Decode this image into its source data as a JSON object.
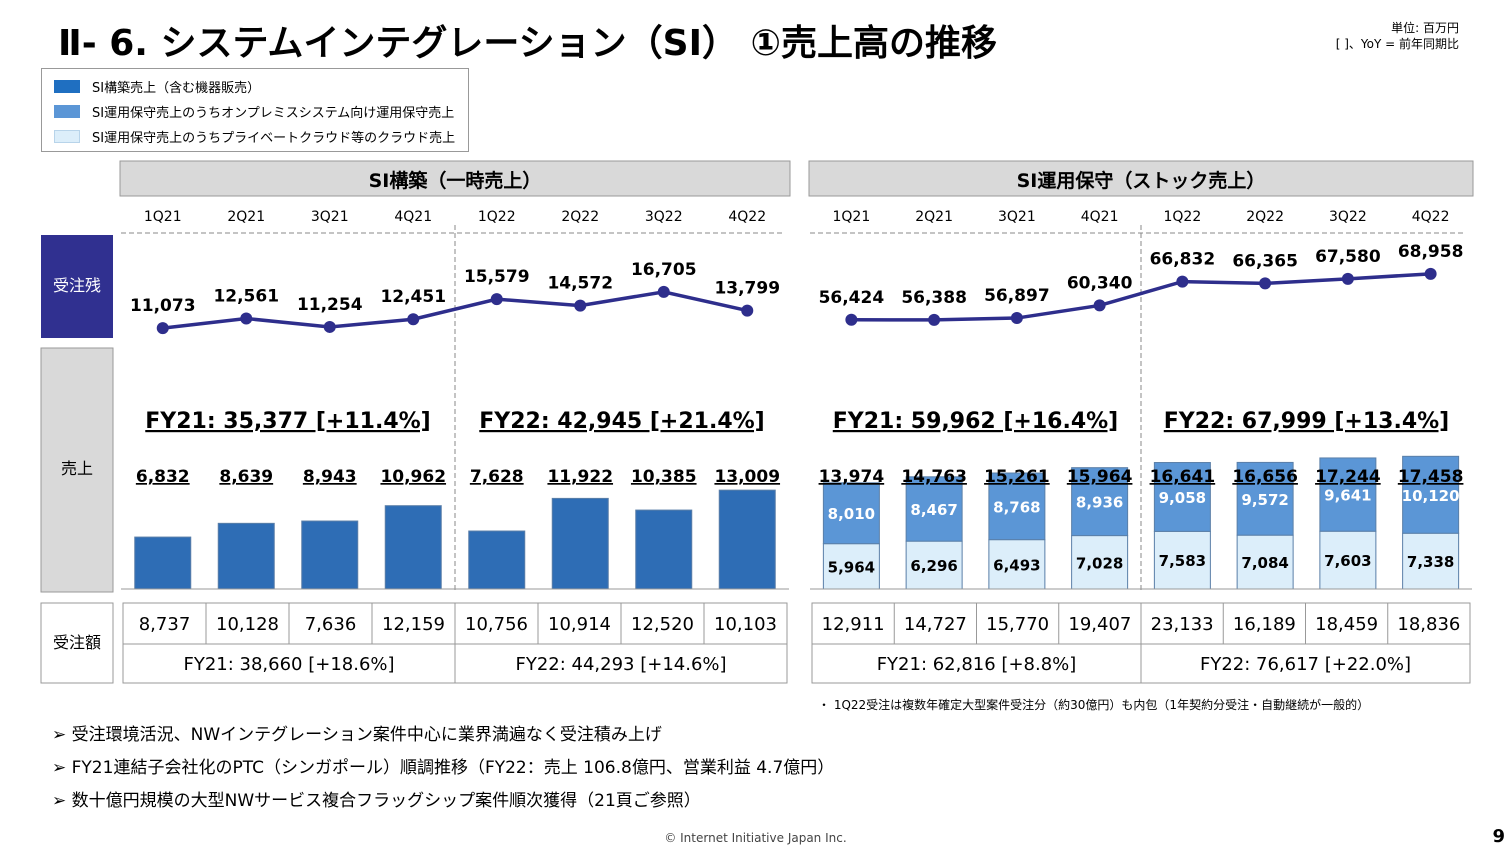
{
  "page": {
    "title": "Ⅱ- 6.  システムインテグレーション（SI）  ①売上高の推移",
    "unit_line1": "単位: 百万円",
    "unit_line2": "[   ]、YoY = 前年同期比",
    "page_number": "9",
    "copyright": "© Internet Initiative Japan Inc."
  },
  "legend": [
    {
      "label": "SI構築売上（含む機器販売）",
      "color": "#1f6fc1"
    },
    {
      "label": "SI運用保守売上のうちオンプレミスシステム向け運用保守売上",
      "color": "#5b96d6"
    },
    {
      "label": "SI運用保守売上のうちプライベートクラウド等のクラウド売上",
      "color": "#dceefa"
    }
  ],
  "row_labels": {
    "backlog": "受注残",
    "sales": "売上",
    "orders": "受注額"
  },
  "bullets": [
    "➢  受注環境活況、NWインテグレーション案件中心に業界満遍なく受注積み上げ",
    "➢  FY21連結子会社化のPTC（シンガポール）順調推移（FY22：売上 106.8億円、営業利益 4.7億円）",
    "➢  数十億円規模の大型NWサービス複合フラッグシップ案件順次獲得（21頁ご参照）"
  ],
  "footnote": "・    1Q22受注は複数年確定大型案件受注分（約30億円）も内包（1年契約分受注・自動継続が一般的）",
  "chart_data": [
    {
      "type": "bar",
      "panel_title": "SI構築（一時売上）",
      "categories": [
        "1Q21",
        "2Q21",
        "3Q21",
        "4Q21",
        "1Q22",
        "2Q22",
        "3Q22",
        "4Q22"
      ],
      "backlog": [
        11073,
        12561,
        11254,
        12451,
        15579,
        14572,
        16705,
        13799
      ],
      "backlog_labels": [
        "11,073",
        "12,561",
        "11,254",
        "12,451",
        "15,579",
        "14,572",
        "16,705",
        "13,799"
      ],
      "series": [
        {
          "name": "SI構築売上（含む機器販売）",
          "values": [
            6832,
            8639,
            8943,
            10962,
            7628,
            11922,
            10385,
            13009
          ]
        }
      ],
      "value_labels": [
        []
      ],
      "total_labels": [
        "6,832",
        "8,639",
        "8,943",
        "10,962",
        "7,628",
        "11,922",
        "10,385",
        "13,009"
      ],
      "fy_labels": [
        "FY21: 35,377 [+11.4%]",
        "FY22: 42,945 [+21.4%]"
      ],
      "orders": [
        "8,737",
        "10,128",
        "7,636",
        "12,159",
        "10,756",
        "10,914",
        "12,520",
        "10,103"
      ],
      "orders_fy": [
        "FY21:  38,660 [+18.6%]",
        "FY22:  44,293 [+14.6%]"
      ]
    },
    {
      "type": "bar",
      "panel_title": "SI運用保守（ストック売上）",
      "categories": [
        "1Q21",
        "2Q21",
        "3Q21",
        "4Q21",
        "1Q22",
        "2Q22",
        "3Q22",
        "4Q22"
      ],
      "backlog": [
        56424,
        56388,
        56897,
        60340,
        66832,
        66365,
        67580,
        68958
      ],
      "backlog_labels": [
        "56,424",
        "56,388",
        "56,897",
        "60,340",
        "66,832",
        "66,365",
        "67,580",
        "68,958"
      ],
      "series": [
        {
          "name": "SI運用保守売上のうちプライベートクラウド等のクラウド売上",
          "values": [
            5964,
            6296,
            6493,
            7028,
            7583,
            7084,
            7603,
            7338
          ]
        },
        {
          "name": "SI運用保守売上のうちオンプレミスシステム向け運用保守売上",
          "values": [
            8010,
            8467,
            8768,
            8936,
            9058,
            9572,
            9641,
            10120
          ]
        }
      ],
      "value_labels": [
        [
          "5,964",
          "6,296",
          "6,493",
          "7,028",
          "7,583",
          "7,084",
          "7,603",
          "7,338"
        ],
        [
          "8,010",
          "8,467",
          "8,768",
          "8,936",
          "9,058",
          "9,572",
          "9,641",
          "10,120"
        ]
      ],
      "total_labels": [
        "13,974",
        "14,763",
        "15,261",
        "15,964",
        "16,641",
        "16,656",
        "17,244",
        "17,458"
      ],
      "fy_labels": [
        "FY21: 59,962 [+16.4%]",
        "FY22: 67,999 [+13.4%]"
      ],
      "orders": [
        "12,911",
        "14,727",
        "15,770",
        "19,407",
        "23,133",
        "16,189",
        "18,459",
        "18,836"
      ],
      "orders_fy": [
        "FY21:  62,816 [+8.8%]",
        "FY22:  76,617 [+22.0%]"
      ]
    }
  ],
  "colors": {
    "line": "#2e2e8c",
    "header_bg": "#d9d9d9",
    "backlog_label_bg": "#303090",
    "sales_label_bg": "#d9d9d9",
    "bar_si": "#2e6db5",
    "bar_onprem": "#5b96d6",
    "bar_cloud": "#dceefa"
  }
}
